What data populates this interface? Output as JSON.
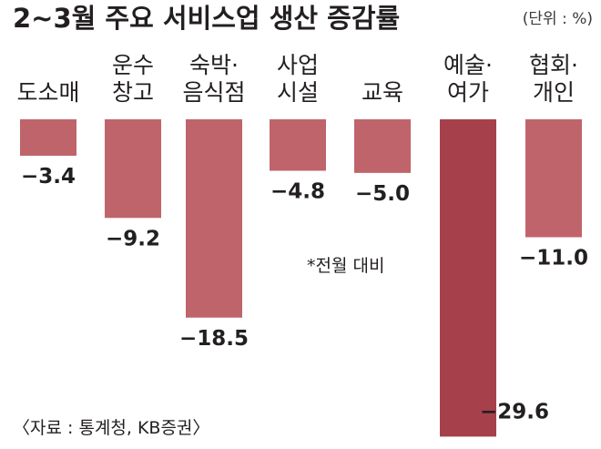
{
  "chart_data": {
    "type": "bar",
    "title": "2~3월 주요 서비스업 생산 증감률",
    "unit_label": "(단위 : %)",
    "categories": [
      [
        "도소매"
      ],
      [
        "운수",
        "창고"
      ],
      [
        "숙박·",
        "음식점"
      ],
      [
        "사업",
        "시설"
      ],
      [
        "교육"
      ],
      [
        "예술·",
        "여가"
      ],
      [
        "협회·",
        "개인"
      ]
    ],
    "values": [
      -3.4,
      -9.2,
      -18.5,
      -4.8,
      -5.0,
      -29.6,
      -11.0
    ],
    "value_labels": [
      "−3.4",
      "−9.2",
      "−18.5",
      "−4.8",
      "−5.0",
      "−29.6",
      "−11.0"
    ],
    "ylim": [
      -30.5,
      0
    ],
    "grid": false,
    "legend": "none",
    "note": "*전월 대비",
    "source": "〈자료 : 통계청, KB증권〉",
    "colors": {
      "bar": "#c0646b",
      "bar_highlight": "#a6414b",
      "text": "#231f20"
    },
    "highlight_index": 5
  }
}
